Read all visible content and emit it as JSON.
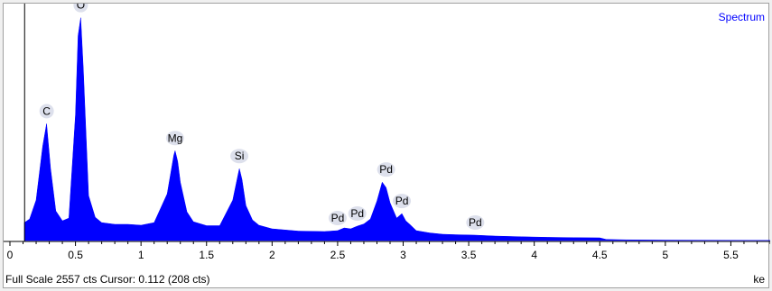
{
  "legend_label": "Spectrum",
  "status": {
    "full_scale_text": "Full Scale 2557 cts Cursor: 0.112  (208 cts)",
    "unit": "ke"
  },
  "colors": {
    "spectrum": "#0000ff",
    "cursor_line": "#000000",
    "peak_label_bg": "#dde0ec"
  },
  "chart_data": {
    "type": "area",
    "title": "",
    "xlabel": "keV",
    "ylabel": "",
    "xlim": [
      0,
      5.8
    ],
    "ylim": [
      0,
      2557
    ],
    "x_ticks": [
      "0",
      "0.5",
      "1",
      "1.5",
      "2",
      "2.5",
      "3",
      "3.5",
      "4",
      "4.5",
      "5",
      "5.5"
    ],
    "grid": false,
    "cursor_x": 0.112,
    "cursor_counts": 208,
    "series": [
      {
        "name": "Spectrum",
        "x": [
          0.11,
          0.15,
          0.2,
          0.25,
          0.28,
          0.31,
          0.35,
          0.4,
          0.45,
          0.5,
          0.52,
          0.54,
          0.56,
          0.6,
          0.65,
          0.7,
          0.8,
          0.9,
          1.0,
          1.1,
          1.2,
          1.25,
          1.26,
          1.28,
          1.3,
          1.35,
          1.4,
          1.5,
          1.6,
          1.7,
          1.74,
          1.75,
          1.77,
          1.8,
          1.85,
          1.9,
          2.0,
          2.2,
          2.4,
          2.5,
          2.55,
          2.6,
          2.65,
          2.7,
          2.75,
          2.8,
          2.84,
          2.87,
          2.9,
          2.95,
          2.99,
          3.02,
          3.05,
          3.1,
          3.2,
          3.3,
          3.4,
          3.55,
          3.7,
          3.9,
          4.1,
          4.3,
          4.5,
          4.55,
          4.7,
          5.0,
          5.5,
          5.8
        ],
        "y": [
          200,
          240,
          450,
          1050,
          1300,
          800,
          330,
          220,
          250,
          1400,
          2280,
          2480,
          1900,
          500,
          260,
          200,
          180,
          180,
          170,
          200,
          520,
          950,
          1000,
          880,
          650,
          320,
          210,
          165,
          165,
          450,
          730,
          800,
          680,
          390,
          230,
          170,
          130,
          105,
          100,
          110,
          140,
          130,
          160,
          185,
          240,
          440,
          650,
          590,
          420,
          250,
          300,
          220,
          180,
          110,
          85,
          70,
          65,
          60,
          50,
          42,
          36,
          32,
          30,
          12,
          8,
          5,
          3,
          2
        ]
      }
    ],
    "annotations": [
      {
        "text": "C",
        "x": 0.28,
        "y": 1300
      },
      {
        "text": "O",
        "x": 0.54,
        "y": 2480
      },
      {
        "text": "Mg",
        "x": 1.26,
        "y": 1000
      },
      {
        "text": "Si",
        "x": 1.75,
        "y": 800
      },
      {
        "text": "Pd",
        "x": 2.5,
        "y": 110
      },
      {
        "text": "Pd",
        "x": 2.65,
        "y": 160
      },
      {
        "text": "Pd",
        "x": 2.87,
        "y": 650
      },
      {
        "text": "Pd",
        "x": 2.99,
        "y": 300
      },
      {
        "text": "Pd",
        "x": 3.55,
        "y": 60
      }
    ]
  }
}
